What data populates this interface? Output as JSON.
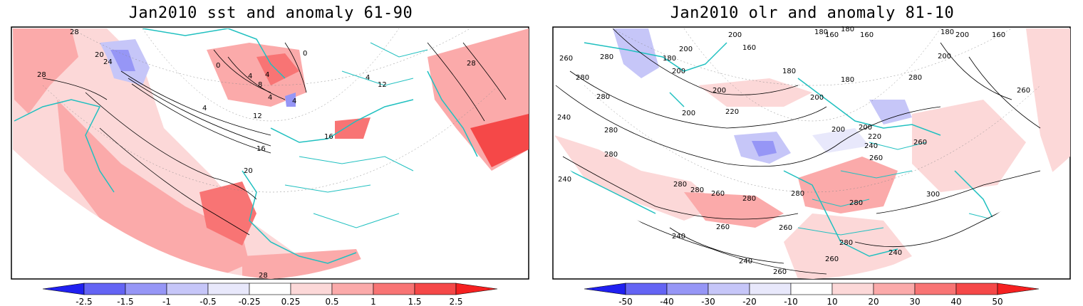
{
  "panels": [
    {
      "title": "Jan2010 sst and anomaly 61-90",
      "contour_labels": [
        "28",
        "20",
        "24",
        "28",
        "0",
        "0",
        "4",
        "4",
        "8",
        "4",
        "4",
        "4",
        "12",
        "16",
        "16",
        "20",
        "28",
        "4",
        "12",
        "28"
      ],
      "colorbar": {
        "ticks": [
          "-2.5",
          "-1.5",
          "-1",
          "-0.5",
          "-0.25",
          "0.25",
          "0.5",
          "1",
          "1.5",
          "2.5"
        ],
        "colors": [
          "#2020f0",
          "#6464f4",
          "#9696f6",
          "#c6c6f8",
          "#e8e8fb",
          "#ffffff",
          "#fcd8d8",
          "#fbaaaa",
          "#f87474",
          "#f54848",
          "#f52020"
        ]
      }
    },
    {
      "title": "Jan2010 olr and anomaly 81-10",
      "contour_labels": [
        "180",
        "160",
        "180",
        "160",
        "260",
        "280",
        "200",
        "180",
        "200",
        "160",
        "200",
        "280",
        "280",
        "180",
        "200",
        "180",
        "280",
        "260",
        "240",
        "280",
        "200",
        "220",
        "200",
        "200",
        "220",
        "200",
        "240",
        "260",
        "260",
        "240",
        "280",
        "280",
        "280",
        "260",
        "280",
        "280",
        "300",
        "280",
        "260",
        "240",
        "260",
        "280",
        "240",
        "260",
        "240",
        "260",
        "180",
        "200",
        "200",
        "160"
      ],
      "colorbar": {
        "ticks": [
          "-50",
          "-40",
          "-30",
          "-20",
          "-10",
          "10",
          "20",
          "30",
          "40",
          "50"
        ],
        "colors": [
          "#2020f0",
          "#6464f4",
          "#9696f6",
          "#c6c6f8",
          "#e8e8fb",
          "#ffffff",
          "#fcd8d8",
          "#fbaaaa",
          "#f87474",
          "#f54848",
          "#f52020"
        ]
      }
    }
  ]
}
